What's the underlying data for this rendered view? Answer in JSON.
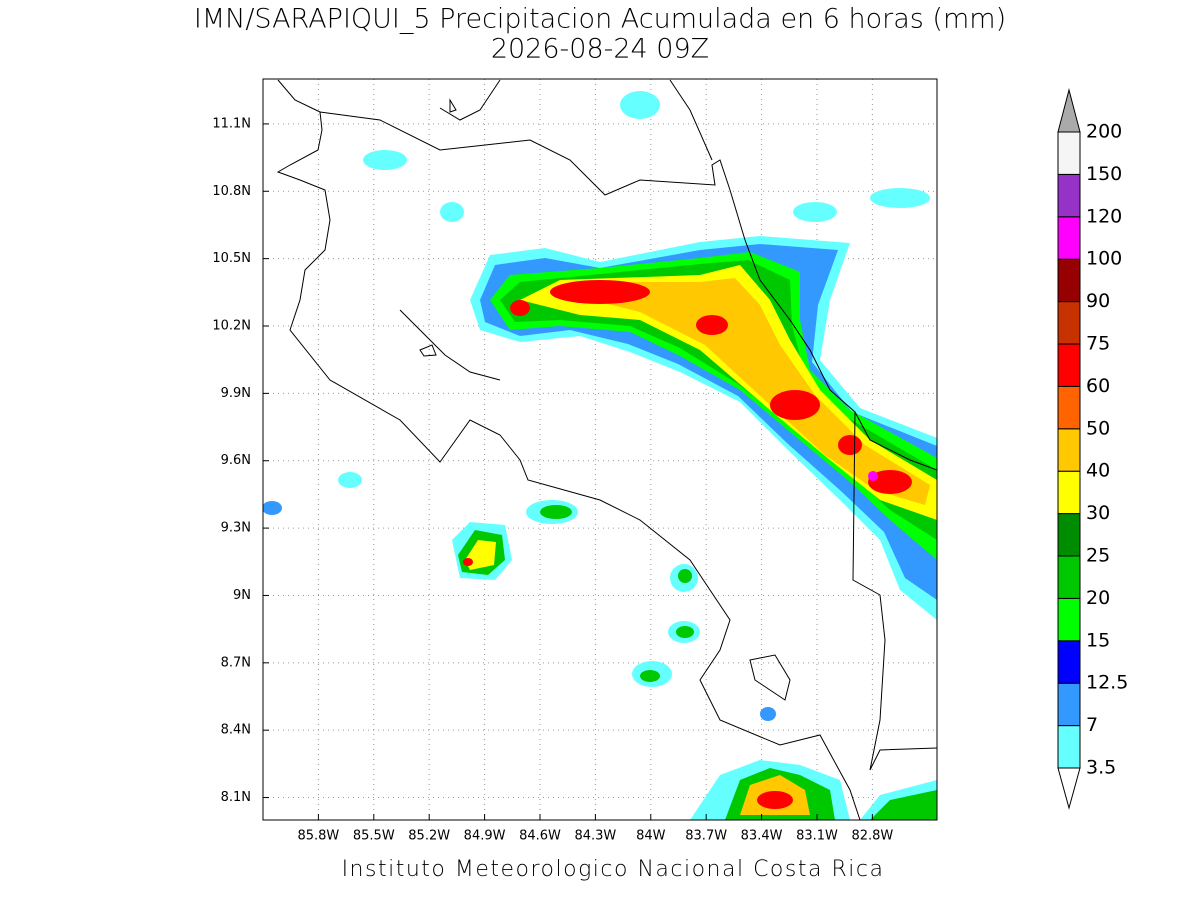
{
  "title": "IMN/SARAPIQUI_5 Precipitacion Acumulada en 6 horas (mm)",
  "subtitle": "2026-08-24 09Z",
  "footer": "Instituto Meteorologico Nacional Costa Rica",
  "map": {
    "xlim": [
      -86.1,
      -82.45
    ],
    "ylim": [
      8.0,
      11.3
    ],
    "xticks": [
      {
        "value": -85.8,
        "label": "85.8W"
      },
      {
        "value": -85.5,
        "label": "85.5W"
      },
      {
        "value": -85.2,
        "label": "85.2W"
      },
      {
        "value": -84.9,
        "label": "84.9W"
      },
      {
        "value": -84.6,
        "label": "84.6W"
      },
      {
        "value": -84.3,
        "label": "84.3W"
      },
      {
        "value": -84.0,
        "label": "84W"
      },
      {
        "value": -83.7,
        "label": "83.7W"
      },
      {
        "value": -83.4,
        "label": "83.4W"
      },
      {
        "value": -83.1,
        "label": "83.1W"
      },
      {
        "value": -82.8,
        "label": "82.8W"
      }
    ],
    "yticks": [
      {
        "value": 8.1,
        "label": "8.1N"
      },
      {
        "value": 8.4,
        "label": "8.4N"
      },
      {
        "value": 8.7,
        "label": "8.7N"
      },
      {
        "value": 9.0,
        "label": "9N"
      },
      {
        "value": 9.3,
        "label": "9.3N"
      },
      {
        "value": 9.6,
        "label": "9.6N"
      },
      {
        "value": 9.9,
        "label": "9.9N"
      },
      {
        "value": 10.2,
        "label": "10.2N"
      },
      {
        "value": 10.5,
        "label": "10.5N"
      },
      {
        "value": 10.8,
        "label": "10.8N"
      },
      {
        "value": 11.1,
        "label": "11.1N"
      }
    ],
    "grid": true
  },
  "colorbar": {
    "levels": [
      3.5,
      7,
      12.5,
      15,
      20,
      25,
      30,
      40,
      50,
      60,
      75,
      90,
      100,
      120,
      150,
      200
    ],
    "colors": [
      "#66ffff",
      "#3399ff",
      "#0000ff",
      "#00ff00",
      "#00c800",
      "#008c00",
      "#ffff00",
      "#ffc800",
      "#ff6400",
      "#ff0000",
      "#c83200",
      "#960000",
      "#ff00ff",
      "#9632c8",
      "#f5f5f5"
    ],
    "under_color": "#ffffff",
    "over_color": "#aaaaaa"
  }
}
